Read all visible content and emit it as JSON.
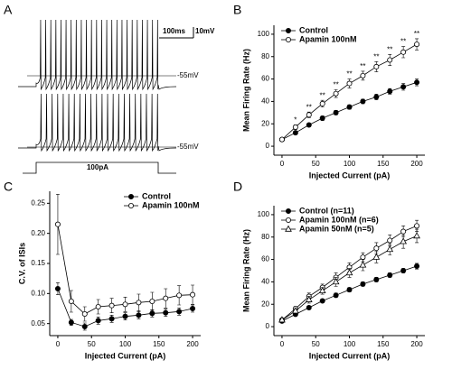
{
  "traces": {
    "panel": "A",
    "scale_time": "100ms",
    "scale_voltage": "10mV",
    "level_top": "-55mV",
    "level_bottom": "-55mV",
    "current": "100pA"
  },
  "chart_data": [
    {
      "type": "line",
      "panel": "B",
      "x_label": "Injected Current (pA)",
      "y_label": "Mean Firing Rate (Hz)",
      "x": [
        0,
        20,
        40,
        60,
        80,
        100,
        120,
        140,
        160,
        180,
        200
      ],
      "xlim": [
        -12,
        212
      ],
      "xticks": [
        0,
        50,
        100,
        150,
        200
      ],
      "ylim": [
        -8,
        108
      ],
      "yticks": [
        0,
        20,
        40,
        60,
        80,
        100
      ],
      "legend": "upper left",
      "series": [
        {
          "name": "Control",
          "color": "#000000",
          "marker": "filled-circle",
          "values": [
            6,
            12,
            19,
            25,
            30,
            35,
            40,
            44,
            49,
            53,
            57
          ],
          "errors": [
            1,
            1.5,
            1.5,
            2,
            2,
            2,
            2,
            2.5,
            2.5,
            3,
            3
          ]
        },
        {
          "name": "Apamin 100nM",
          "color": "#000000",
          "marker": "open-circle",
          "values": [
            6,
            17,
            28,
            38,
            47,
            56,
            63,
            71,
            77,
            84,
            91
          ],
          "errors": [
            1,
            2,
            2.5,
            3,
            3.5,
            4,
            4,
            4.5,
            5,
            5,
            5
          ],
          "significance": [
            null,
            "*",
            "**",
            "**",
            "**",
            "**",
            "**",
            "**",
            "**",
            "**",
            "**"
          ]
        }
      ]
    },
    {
      "type": "line",
      "panel": "C",
      "x_label": "Injected Current (pA)",
      "y_label": "C.V. of ISIs",
      "x": [
        0,
        20,
        40,
        60,
        80,
        100,
        120,
        140,
        160,
        180,
        200
      ],
      "xlim": [
        -12,
        212
      ],
      "xticks": [
        0,
        50,
        100,
        150,
        200
      ],
      "ylim": [
        0.03,
        0.27
      ],
      "yticks": [
        0.05,
        {
          "value": 0.1,
          "label": "0.10"
        },
        0.15,
        {
          "value": 0.2,
          "label": "0.20"
        },
        0.25
      ],
      "legend": "upper right",
      "series": [
        {
          "name": "Control",
          "color": "#000000",
          "marker": "filled-circle",
          "values": [
            0.108,
            0.052,
            0.045,
            0.055,
            0.058,
            0.062,
            0.064,
            0.067,
            0.068,
            0.07,
            0.075
          ],
          "errors": [
            0.01,
            0.005,
            0.006,
            0.006,
            0.006,
            0.006,
            0.006,
            0.006,
            0.006,
            0.006,
            0.006
          ]
        },
        {
          "name": "Apamin 100nM",
          "color": "#000000",
          "marker": "open-circle",
          "values": [
            0.215,
            0.087,
            0.066,
            0.078,
            0.08,
            0.082,
            0.085,
            0.087,
            0.092,
            0.097,
            0.098
          ],
          "errors": [
            0.05,
            0.018,
            0.012,
            0.012,
            0.012,
            0.012,
            0.014,
            0.015,
            0.016,
            0.016,
            0.016
          ]
        }
      ]
    },
    {
      "type": "line",
      "panel": "D",
      "x_label": "Injected Current (pA)",
      "y_label": "Mean Firing Rate (Hz)",
      "x": [
        0,
        20,
        40,
        60,
        80,
        100,
        120,
        140,
        160,
        180,
        200
      ],
      "xlim": [
        -12,
        212
      ],
      "xticks": [
        0,
        50,
        100,
        150,
        200
      ],
      "ylim": [
        -8,
        108
      ],
      "yticks": [
        0,
        20,
        40,
        60,
        80,
        100
      ],
      "legend": "upper left",
      "series": [
        {
          "name": "Control (n=11)",
          "color": "#000000",
          "marker": "filled-circle",
          "values": [
            5,
            11,
            17,
            23,
            28,
            33,
            38,
            42,
            46,
            50,
            54
          ],
          "errors": [
            1,
            1.5,
            1.5,
            1.5,
            2,
            2,
            2,
            2,
            2,
            2,
            2.5
          ]
        },
        {
          "name": "Apamin 100nM (n=6)",
          "color": "#000000",
          "marker": "open-circle",
          "values": [
            6,
            16,
            27,
            35,
            44,
            53,
            62,
            70,
            77,
            85,
            90
          ],
          "errors": [
            1,
            2,
            3,
            3,
            4,
            4,
            4,
            5,
            5,
            5,
            5
          ]
        },
        {
          "name": "Apamin 50nM (n=5)",
          "color": "#000000",
          "marker": "open-triangle",
          "values": [
            6,
            14,
            24,
            32,
            40,
            48,
            55,
            62,
            69,
            76,
            81
          ],
          "errors": [
            1,
            2,
            3,
            3,
            4,
            4,
            5,
            5,
            5,
            6,
            6
          ]
        }
      ]
    }
  ]
}
